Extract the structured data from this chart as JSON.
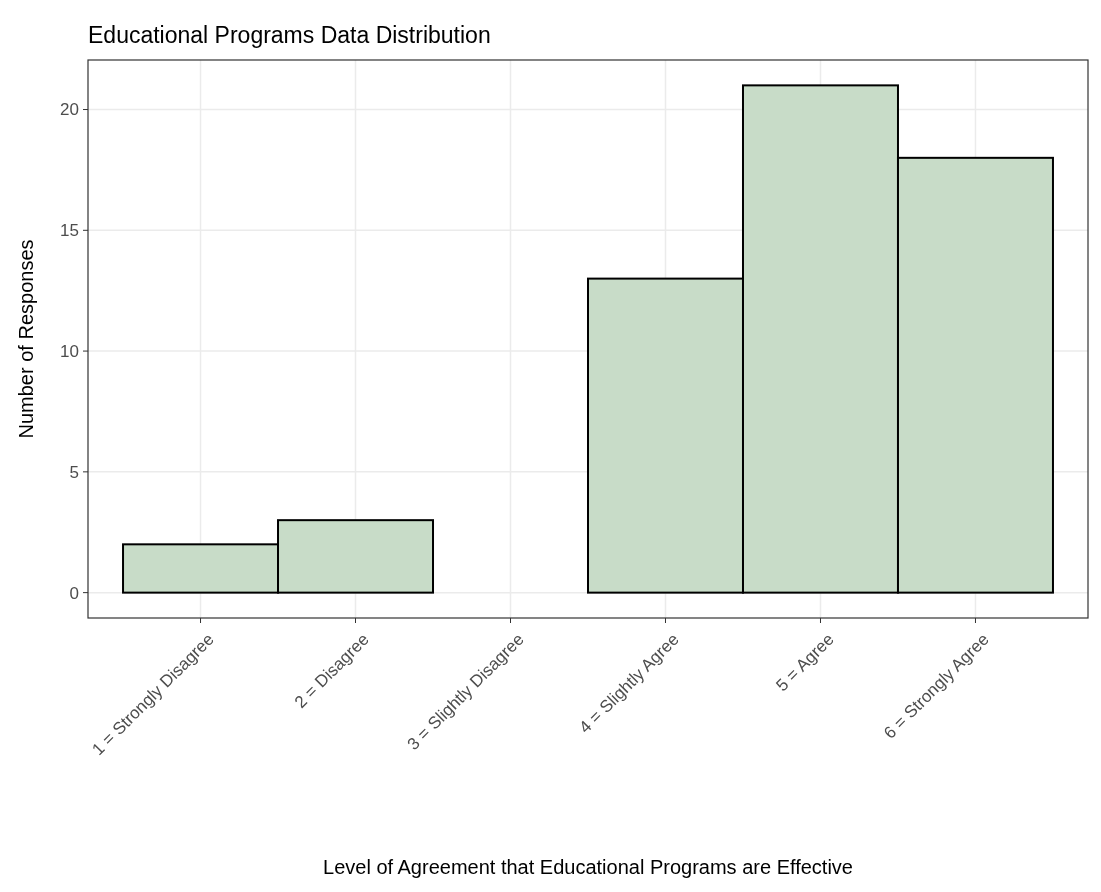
{
  "chart_data": {
    "type": "bar",
    "title": "Educational Programs Data Distribution",
    "xlabel": "Level of Agreement that Educational Programs are Effective",
    "ylabel": "Number of Responses",
    "categories": [
      "1 = Strongly Disagree",
      "2 = Disagree",
      "3 = Slightly Disagree",
      "4 = Slightly Agree",
      "5 = Agree",
      "6 = Strongly Agree"
    ],
    "values": [
      2,
      3,
      0,
      13,
      21,
      18
    ],
    "color": "#c8dcc8",
    "ylim": [
      -1.05,
      22.05
    ],
    "yticks": [
      0,
      5,
      10,
      15,
      20
    ],
    "grid": true
  }
}
